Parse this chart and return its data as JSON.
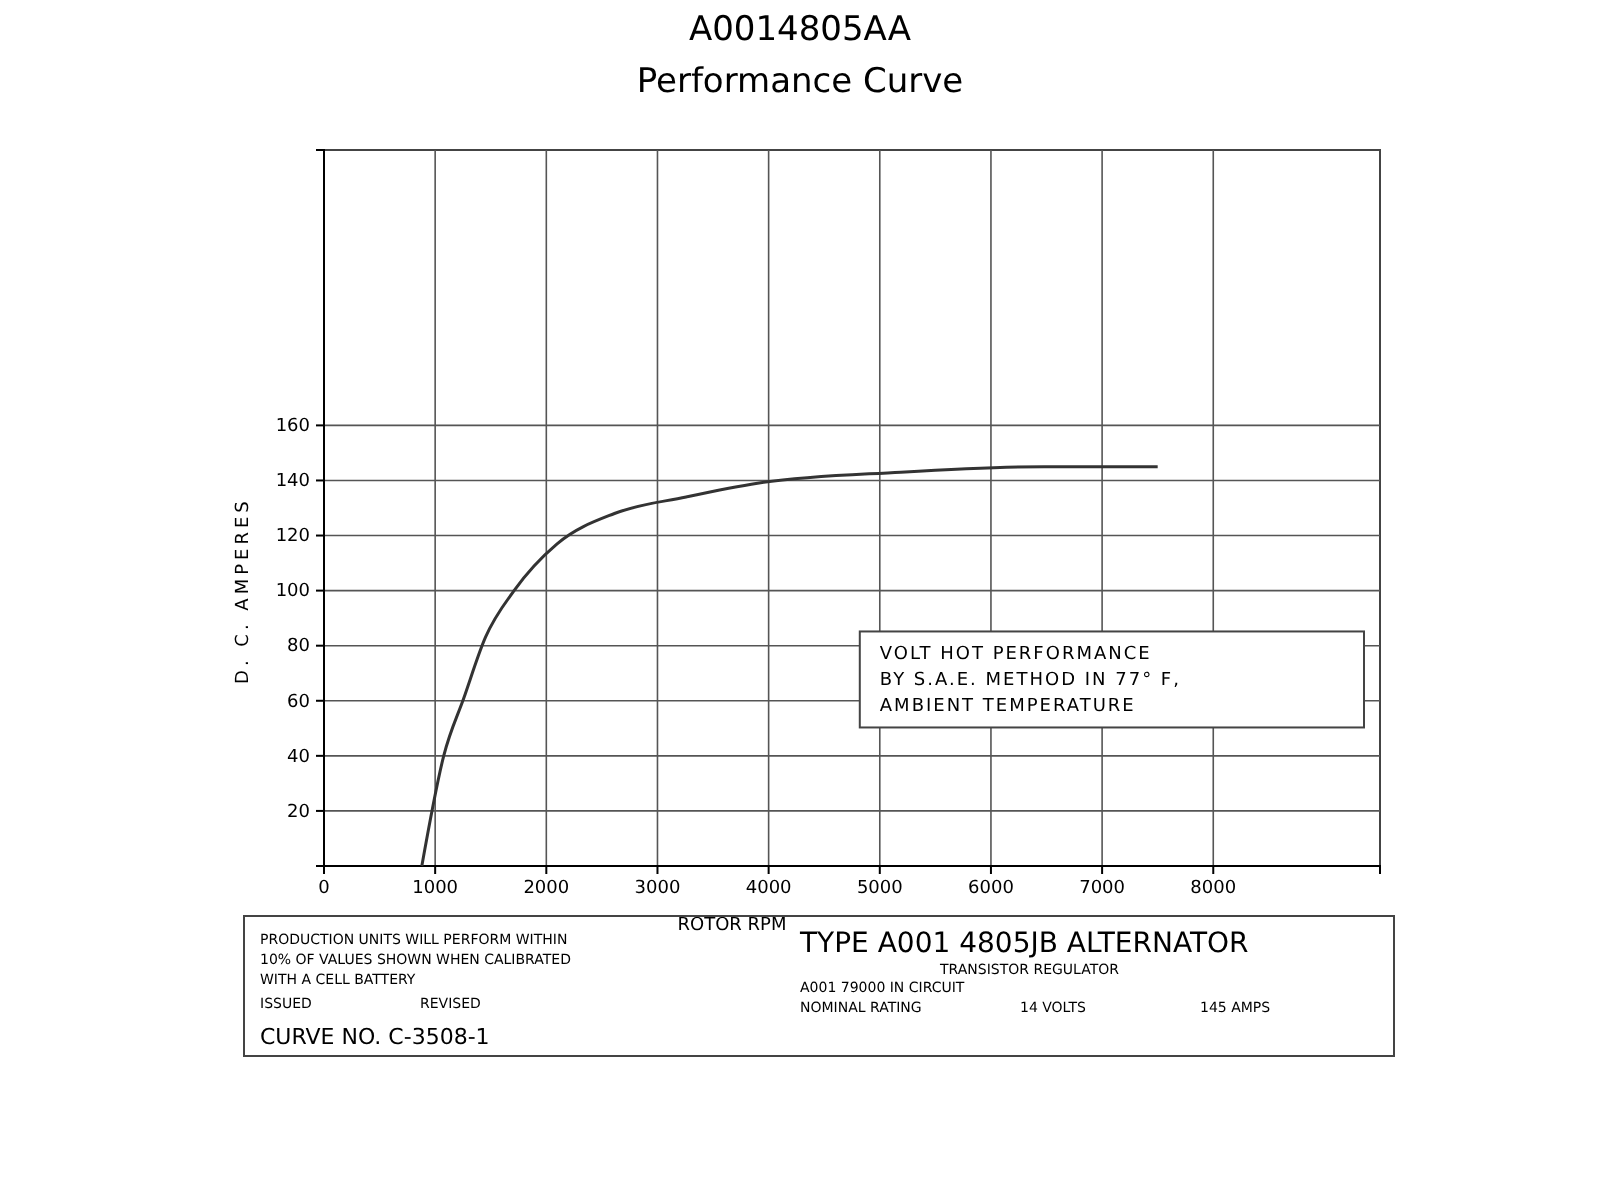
{
  "chart_data": {
    "type": "line",
    "title": "A0014805AA",
    "subtitle": "Performance Curve",
    "xlabel": "ROTOR RPM",
    "ylabel": "D. C. AMPERES",
    "x": [
      880,
      1077,
      1258,
      1452,
      1710,
      2097,
      2613,
      3258,
      3900,
      5190,
      6480,
      7500
    ],
    "series": [
      {
        "color": "#333333",
        "values": [
          0,
          40,
          61,
          83,
          100,
          117,
          128,
          134,
          139,
          143,
          145,
          145
        ]
      }
    ],
    "xlim": [
      0,
      9500
    ],
    "ylim": [
      0,
      260
    ],
    "xticks": [
      0,
      1000,
      2000,
      3000,
      4000,
      5000,
      6000,
      7000,
      8000
    ],
    "yticks": [
      {
        "value": 0,
        "label": null
      },
      20,
      40,
      60,
      80,
      100,
      120,
      140,
      160
    ],
    "grid": true,
    "marker": "none",
    "line_style": "solid",
    "annotations": [
      "VOLT HOT PERFORMANCE",
      "BY S.A.E. METHOD IN 77° F,",
      "AMBIENT TEMPERATURE",
      "PRODUCTION UNITS WILL PERFORM WITHIN",
      "10% OF VALUES SHOWN WHEN CALIBRATED",
      "WITH A CELL BATTERY",
      "TYPE A001 4805JB ALTERNATOR",
      "TRANSISTOR REGULATOR",
      "A001 79000 IN CIRCUIT",
      "NOMINAL RATING",
      "14 VOLTS",
      "145 AMPS",
      "ISSUED",
      "REVISED",
      "CURVE NO. C-3508-1"
    ]
  }
}
